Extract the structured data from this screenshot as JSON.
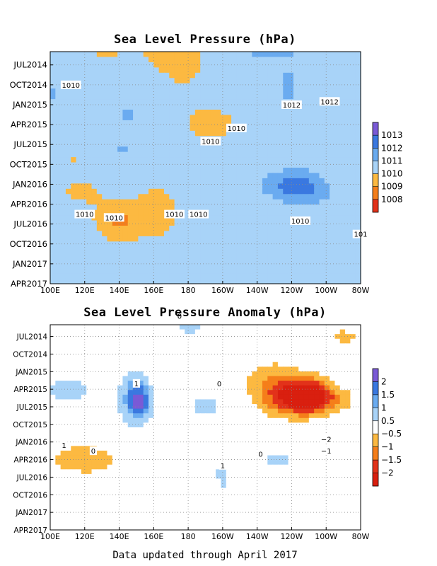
{
  "chart_data": [
    {
      "type": "heatmap",
      "title": "Sea Level Pressure (hPa)",
      "x_ticks": [
        "100E",
        "120E",
        "140E",
        "160E",
        "180",
        "160W",
        "140W",
        "120W",
        "100W",
        "80W"
      ],
      "y_ticks": [
        "JUL2014",
        "OCT2014",
        "JAN2015",
        "APR2015",
        "JUL2015",
        "OCT2015",
        "JAN2016",
        "APR2016",
        "JUL2016",
        "OCT2016",
        "JAN2017",
        "APR2017"
      ],
      "ylim": [
        "APR2017",
        "MAY2014"
      ],
      "grid": true,
      "colorbar": {
        "placement": "right",
        "levels": [
          1008,
          1009,
          1010,
          1011,
          1012,
          1013
        ],
        "labels": [
          "1013",
          "1012",
          "1011",
          "1010",
          "1009",
          "1008"
        ],
        "colors": [
          "#7a5ad6",
          "#3a78e0",
          "#6aabf0",
          "#a8d3f8",
          "#fcb941",
          "#f57e1a",
          "#e2321a"
        ]
      },
      "contour_labels": [
        "1010",
        "1010",
        "1010",
        "1012",
        "1010",
        "1010",
        "1010",
        "1010",
        "1010",
        "1012",
        "101"
      ],
      "field": {
        "base": 1010.6,
        "blobs": [
          [
            103,
            0.8,
            0.25,
            0.16,
            0.4
          ],
          [
            100,
            1.4,
            0.22,
            0.17,
            0.4
          ],
          [
            132,
            3.0,
            -1.3,
            9,
            2.3
          ],
          [
            166,
            3.5,
            -1.0,
            14,
            3.0
          ],
          [
            195,
            15,
            -1.0,
            15,
            2.5
          ],
          [
            178,
            3.5,
            -0.8,
            15,
            10.0
          ],
          [
            140,
            29.5,
            -1.7,
            14,
            3.0
          ],
          [
            163,
            28,
            -0.9,
            14,
            5.0
          ],
          [
            118,
            25,
            -0.8,
            14,
            2.5
          ],
          [
            120,
            8.0,
            -0.6,
            14,
            2.0
          ],
          [
            113,
            20,
            -0.6,
            12,
            2.0
          ],
          [
            116,
            15.5,
            -0.4,
            8,
            1.5
          ],
          [
            228,
            2.2,
            2.7,
            14,
            2.0
          ],
          [
            258,
            2.5,
            -0.9,
            10,
            3.0
          ],
          [
            241,
            24.2,
            2.0,
            14,
            2.0
          ],
          [
            252,
            25.5,
            0.7,
            10,
            1.5
          ],
          [
            146,
            13.5,
            0.7,
            5,
            1.5
          ],
          [
            142,
            19.0,
            0.5,
            5,
            1.5
          ],
          [
            100,
            10.0,
            0.7,
            5,
            1.2
          ],
          [
            238,
            9.0,
            0.6,
            6,
            3.5
          ],
          [
            272,
            10.5,
            -0.5,
            10,
            2.0
          ],
          [
            275,
            4.5,
            -0.5,
            6,
            1.5
          ],
          [
            203,
            23.0,
            0.3,
            8,
            1.5
          ]
        ]
      }
    },
    {
      "type": "heatmap",
      "title": "Sea Level Pressure Anomaly (hPa)",
      "x_ticks": [
        "100E",
        "120E",
        "140E",
        "160E",
        "180",
        "160W",
        "140W",
        "120W",
        "100W",
        "80W"
      ],
      "y_ticks": [
        "JUL2014",
        "OCT2014",
        "JAN2015",
        "APR2015",
        "JUL2015",
        "OCT2015",
        "JAN2016",
        "APR2016",
        "JUL2016",
        "OCT2016",
        "JAN2017",
        "APR2017"
      ],
      "ylim": [
        "APR2017",
        "MAY2014"
      ],
      "grid": true,
      "colorbar": {
        "placement": "right",
        "levels": [
          -2,
          -1.5,
          -1,
          -0.5,
          0.5,
          1,
          1.5,
          2
        ],
        "labels": [
          "2",
          "1.5",
          "1",
          "0.5",
          "−0.5",
          "−1",
          "−1.5",
          "−2"
        ],
        "colors": [
          "#7a5ad6",
          "#3a78e0",
          "#6aabf0",
          "#a8d3f8",
          "#ffffff",
          "#fcb941",
          "#f57e1a",
          "#e2321a",
          "#d91f0f"
        ]
      },
      "contour_labels": [
        "0",
        "1",
        "0",
        "1",
        "0",
        "−2",
        "−1",
        "0",
        "1"
      ],
      "field": {
        "base": 0.0,
        "blobs": [
          [
            150,
            17.0,
            1.3,
            10,
            4.5
          ],
          [
            152,
            17.5,
            1.0,
            5,
            2.0
          ],
          [
            150,
            15.0,
            0.5,
            5,
            2.5
          ],
          [
            110,
            15.0,
            0.6,
            25,
            4.0
          ],
          [
            110,
            20.0,
            0.3,
            15,
            1.5
          ],
          [
            180,
            4.0,
            0.7,
            5,
            2.0
          ],
          [
            198,
            1.5,
            0.9,
            25,
            3.5
          ],
          [
            200,
            12.5,
            -0.4,
            12,
            1.8
          ],
          [
            190,
            18.0,
            0.7,
            12,
            2.5
          ],
          [
            200,
            30.0,
            0.9,
            4,
            3.0
          ],
          [
            245,
            16.5,
            -2.3,
            18,
            3.0
          ],
          [
            253,
            16.0,
            -1.2,
            10,
            2.5
          ],
          [
            230,
            14.0,
            -0.8,
            18,
            4.5
          ],
          [
            270,
            17.0,
            -0.5,
            10,
            2.0
          ],
          [
            270,
            6.0,
            -0.7,
            10,
            1.5
          ],
          [
            275,
            1.5,
            -0.7,
            8,
            1.5
          ],
          [
            120,
            27.0,
            -1.0,
            22,
            2.5
          ],
          [
            233,
            27.0,
            0.6,
            15,
            2.5
          ],
          [
            150,
            25.0,
            0.3,
            12,
            2.0
          ],
          [
            110,
            2.5,
            0.3,
            20,
            2.0
          ],
          [
            180,
            31.5,
            -0.3,
            30,
            1.0
          ]
        ]
      }
    }
  ],
  "footer": "Data updated through April 2017"
}
